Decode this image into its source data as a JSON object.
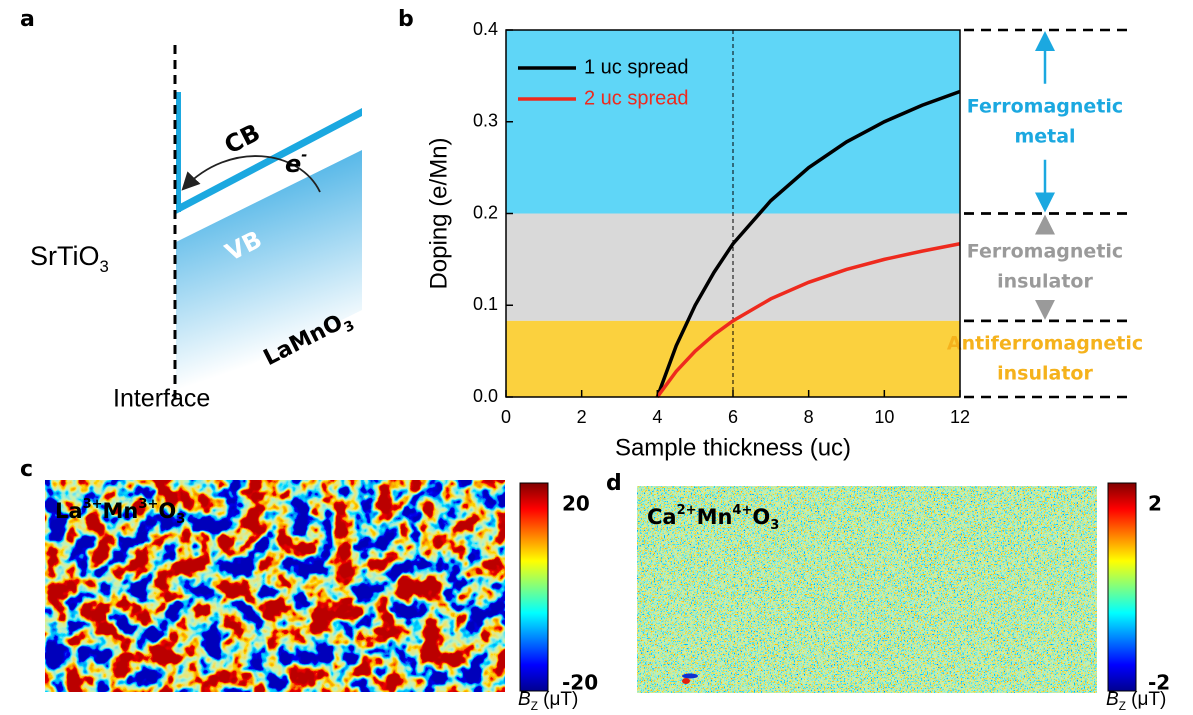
{
  "panel_labels": [
    "a",
    "b",
    "c",
    "d"
  ],
  "diagram": {
    "substrate": [
      {
        "text": "SrTiO"
      },
      {
        "sub": "3"
      }
    ],
    "film": [
      {
        "text": "LaMnO"
      },
      {
        "sub": "3"
      }
    ],
    "conduction_band": "CB",
    "valence_band": "VB",
    "electron": [
      {
        "text": "e"
      },
      {
        "sup": "-"
      }
    ],
    "interface": "Interface"
  },
  "chart_data": {
    "type": "line",
    "x_label": "Sample thickness (uc)",
    "y_label": "Doping (e/Mn)",
    "xlim": [
      0,
      12
    ],
    "ylim": [
      0,
      0.4
    ],
    "xticks": [
      0,
      2,
      4,
      6,
      8,
      10,
      12
    ],
    "yticks": [
      {
        "value": 0,
        "label": "0.0"
      },
      0.1,
      0.2,
      0.3,
      0.4
    ],
    "x": [
      4,
      4.5,
      5,
      5.5,
      6,
      7,
      8,
      9,
      10,
      11,
      12
    ],
    "series": [
      {
        "name": "1 uc spread",
        "color": "#000000",
        "values": [
          0,
          0.056,
          0.1,
          0.136,
          0.167,
          0.214,
          0.25,
          0.278,
          0.3,
          0.318,
          0.333
        ]
      },
      {
        "name": "2 uc spread",
        "color": "#ee2a1e",
        "values": [
          0,
          0.028,
          0.05,
          0.068,
          0.083,
          0.107,
          0.125,
          0.139,
          0.15,
          0.159,
          0.167
        ]
      }
    ],
    "legend": "upper left",
    "reference_line_x": 6,
    "regions": [
      {
        "from": 0.2,
        "to": 0.4,
        "color": "#5fd6f7",
        "label_color": "#1ba8e0",
        "label": [
          "Ferromagnetic",
          "metal"
        ]
      },
      {
        "from": 0.083,
        "to": 0.2,
        "color": "#d9d9d9",
        "label_color": "#9a9a9a",
        "label": [
          "Ferromagnetic",
          "insulator"
        ]
      },
      {
        "from": 0,
        "to": 0.083,
        "color": "#fbd13e",
        "label_color": "#f5b21c",
        "label": [
          "Antiferromagnetic",
          "insulator"
        ]
      }
    ]
  },
  "maps": [
    {
      "label": [
        {
          "text": "La"
        },
        {
          "sup": "3+"
        },
        {
          "text": "Mn"
        },
        {
          "sup": "3+"
        },
        {
          "text": "O"
        },
        {
          "sub": "3"
        }
      ],
      "colorbar_max": 20,
      "colorbar_min": -20,
      "colorbar_label": [
        {
          "text": "B"
        },
        {
          "sub": "Z"
        },
        {
          "text": " (μT)"
        }
      ]
    },
    {
      "label": [
        {
          "text": "Ca"
        },
        {
          "sup": "2+"
        },
        {
          "text": "Mn"
        },
        {
          "sup": "4+"
        },
        {
          "text": "O"
        },
        {
          "sub": "3"
        }
      ],
      "colorbar_max": 2,
      "colorbar_min": -2,
      "colorbar_label": [
        {
          "text": "B"
        },
        {
          "sub": "Z"
        },
        {
          "text": " (μT)"
        }
      ]
    }
  ]
}
